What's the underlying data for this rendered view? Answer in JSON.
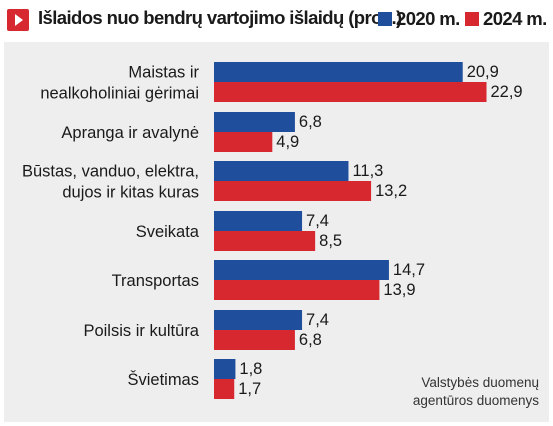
{
  "header": {
    "title": "Išlaidos nuo bendrų vartojimo išlaidų (proc.)",
    "legend": [
      {
        "label": "2020 m.",
        "color": "#1f4e9c"
      },
      {
        "label": "2024 m.",
        "color": "#d7282f"
      }
    ]
  },
  "source": "Valstybės duomenų agentūros duomenys",
  "chart_data": {
    "type": "bar",
    "orientation": "horizontal",
    "title": "Išlaidos nuo bendrų vartojimo išlaidų (proc.)",
    "categories": [
      [
        "Maistas ir",
        "nealkoholiniai gėrimai"
      ],
      [
        "Apranga ir avalynė"
      ],
      [
        "Būstas, vanduo, elektra,",
        "dujos ir kitas kuras"
      ],
      [
        "Sveikata"
      ],
      [
        "Transportas"
      ],
      [
        "Poilsis ir kultūra"
      ],
      [
        "Švietimas"
      ]
    ],
    "series": [
      {
        "name": "2020 m.",
        "color": "#1f4e9c",
        "values": [
          20.9,
          6.8,
          11.3,
          7.4,
          14.7,
          7.4,
          1.8
        ],
        "labels": [
          "20,9",
          "6,8",
          "11,3",
          "7,4",
          "14,7",
          "7,4",
          "1,8"
        ]
      },
      {
        "name": "2024 m.",
        "color": "#d7282f",
        "values": [
          22.9,
          4.9,
          13.2,
          8.5,
          13.9,
          6.8,
          1.7
        ],
        "labels": [
          "22,9",
          "4,9",
          "13,2",
          "8,5",
          "13,9",
          "6,8",
          "1,7"
        ]
      }
    ],
    "grid": false,
    "legend_position": "top-right"
  }
}
